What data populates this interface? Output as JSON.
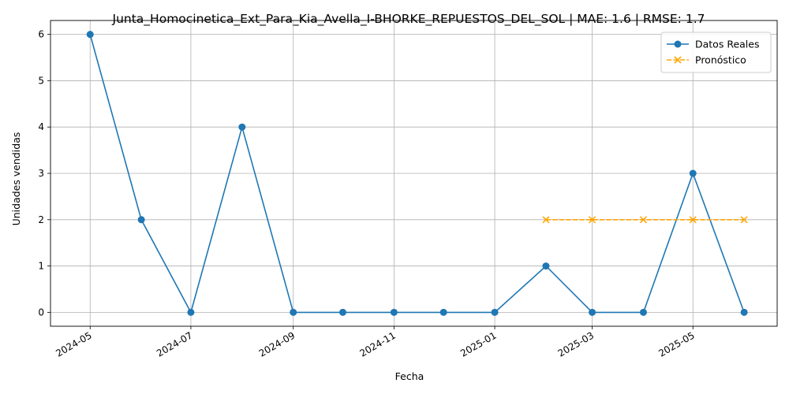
{
  "chart_data": {
    "type": "line",
    "title": "Junta_Homocinetica_Ext_Para_Kia_Avella_I-BHORKE_REPUESTOS_DEL_SOL | MAE: 1.6 | RMSE: 1.7",
    "xlabel": "Fecha",
    "ylabel": "Unidades vendidas",
    "ylim": [
      -0.3,
      6.3
    ],
    "xlim": [
      "2024-04-07",
      "2025-06-21"
    ],
    "grid": true,
    "legend_position": "top-right",
    "x_ticks": [
      "2024-05",
      "2024-07",
      "2024-09",
      "2024-11",
      "2025-01",
      "2025-03",
      "2025-05"
    ],
    "y_ticks": [
      "0",
      "1",
      "2",
      "3",
      "4",
      "5",
      "6"
    ],
    "series": [
      {
        "name": "Datos Reales",
        "color": "#1f77b4",
        "marker": "circle",
        "line_style": "solid",
        "x": [
          "2024-05-01",
          "2024-06-01",
          "2024-07-01",
          "2024-08-01",
          "2024-09-01",
          "2024-10-01",
          "2024-11-01",
          "2024-12-01",
          "2025-01-01",
          "2025-02-01",
          "2025-03-01",
          "2025-04-01",
          "2025-05-01",
          "2025-06-01"
        ],
        "values": [
          6,
          2,
          0,
          4,
          0,
          0,
          0,
          0,
          0,
          1,
          0,
          0,
          3,
          0
        ]
      },
      {
        "name": "Pronóstico",
        "color": "#ffa500",
        "marker": "x",
        "line_style": "dashed",
        "x": [
          "2025-02-01",
          "2025-03-01",
          "2025-04-01",
          "2025-05-01",
          "2025-06-01"
        ],
        "values": [
          2,
          2,
          2,
          2,
          2
        ]
      }
    ]
  }
}
